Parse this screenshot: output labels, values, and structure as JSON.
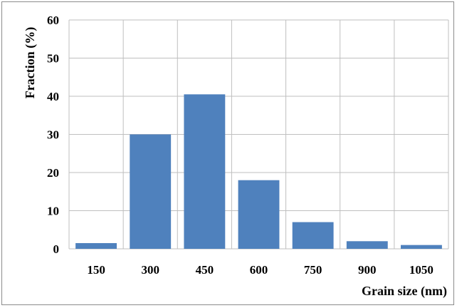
{
  "chart_data": {
    "type": "bar",
    "title": "",
    "xlabel": "Grain size (nm)",
    "ylabel": "Fraction (%)",
    "categories": [
      "150",
      "300",
      "450",
      "600",
      "750",
      "900",
      "1050"
    ],
    "values": [
      1.5,
      30,
      40.5,
      18,
      7,
      2,
      1
    ],
    "ylim": [
      0,
      60
    ],
    "yticks": [
      "0",
      "10",
      "20",
      "30",
      "40",
      "50",
      "60"
    ],
    "grid": true,
    "legend": "none",
    "bar_color": "#4f81bd",
    "grid_color": "#bfbfbf"
  }
}
